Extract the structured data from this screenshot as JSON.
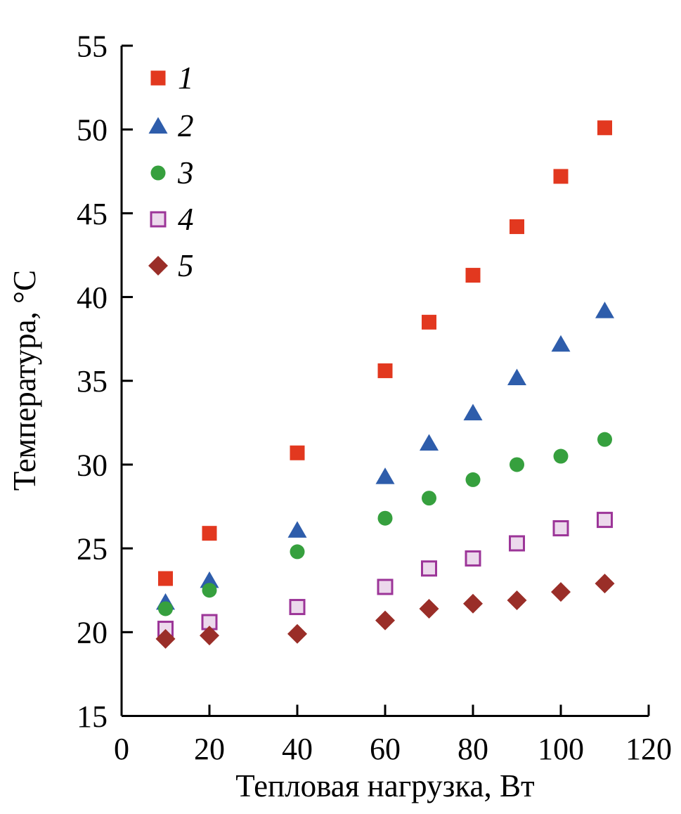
{
  "figure": {
    "background": "#ffffff",
    "text_color": "#000000",
    "axis_color": "#000000"
  },
  "chart_data": {
    "type": "scatter",
    "title": "",
    "xlabel": "Тепловая нагрузка, Вт",
    "ylabel": "Температура, °C",
    "xlim": [
      0,
      120
    ],
    "ylim": [
      15,
      55
    ],
    "x_ticks": [
      0,
      20,
      40,
      60,
      80,
      100,
      120
    ],
    "y_ticks": [
      15,
      20,
      25,
      30,
      35,
      40,
      45,
      50,
      55
    ],
    "grid": false,
    "legend": {
      "position": "upper-left-inside"
    },
    "x": [
      10,
      20,
      40,
      60,
      70,
      80,
      90,
      100,
      110
    ],
    "series": [
      {
        "name": "1",
        "marker": "filled-square",
        "color": "#e2381f",
        "values": [
          23.2,
          25.9,
          30.7,
          35.6,
          38.5,
          41.3,
          44.2,
          47.2,
          50.1
        ]
      },
      {
        "name": "2",
        "marker": "filled-triangle",
        "color": "#2e5dab",
        "values": [
          21.8,
          23.1,
          26.1,
          29.3,
          31.3,
          33.1,
          35.2,
          37.2,
          39.2
        ]
      },
      {
        "name": "3",
        "marker": "filled-circle",
        "color": "#36a03e",
        "values": [
          21.4,
          22.5,
          24.8,
          26.8,
          28.0,
          29.1,
          30.0,
          30.5,
          31.5
        ]
      },
      {
        "name": "4",
        "marker": "open-square",
        "color": "#9c3598",
        "fill": "#ecd9ec",
        "values": [
          20.2,
          20.6,
          21.5,
          22.7,
          23.8,
          24.4,
          25.3,
          26.2,
          26.7
        ]
      },
      {
        "name": "5",
        "marker": "filled-diamond",
        "color": "#9a2e28",
        "values": [
          19.6,
          19.8,
          19.9,
          20.7,
          21.4,
          21.7,
          21.9,
          22.4,
          22.9
        ]
      }
    ]
  }
}
